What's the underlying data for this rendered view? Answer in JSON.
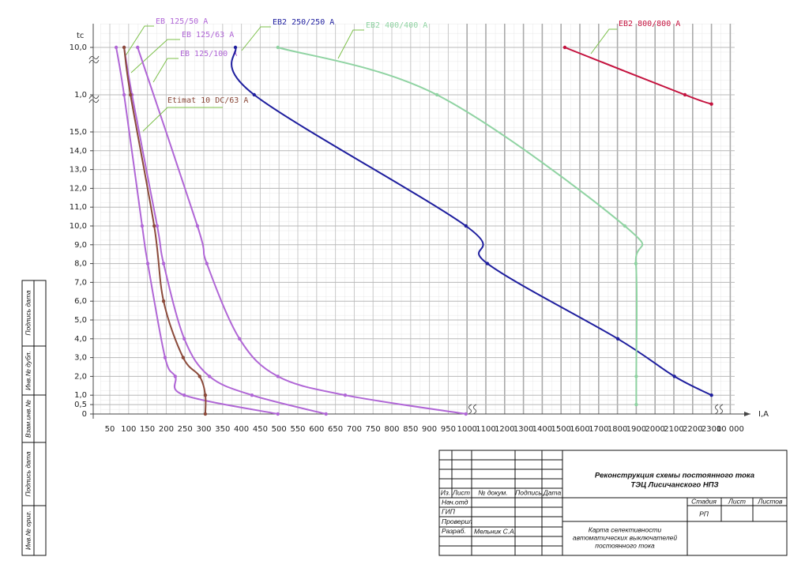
{
  "chart_data": {
    "type": "line",
    "y_axis_label": "tc",
    "x_axis_label": "I,A",
    "xlim": [
      50,
      10000
    ],
    "xticks": [
      50,
      100,
      150,
      200,
      250,
      300,
      350,
      400,
      450,
      500,
      550,
      600,
      650,
      700,
      750,
      800,
      850,
      900,
      950,
      1000,
      1100,
      1200,
      1300,
      1400,
      1500,
      1600,
      1700,
      1800,
      1900,
      2000,
      2100,
      2200,
      2300,
      {
        "value": 10000,
        "label": "10 000"
      }
    ],
    "ylim": [
      0,
      15
    ],
    "yticks": [
      0,
      {
        "value": 0.5,
        "label": "0,5"
      },
      {
        "value": 1,
        "label": "1,0"
      },
      {
        "value": 2,
        "label": "2,0"
      },
      {
        "value": 3,
        "label": "3,0"
      },
      {
        "value": 4,
        "label": "4,0"
      },
      {
        "value": 5,
        "label": "5,0"
      },
      {
        "value": 6,
        "label": "6,0"
      },
      {
        "value": 7,
        "label": "7,0"
      },
      {
        "value": 8,
        "label": "8,0"
      },
      {
        "value": 9,
        "label": "9,0"
      },
      {
        "value": 10,
        "label": "10,0"
      },
      {
        "value": 11,
        "label": "11,0"
      },
      {
        "value": 12,
        "label": "12,0"
      },
      {
        "value": 13,
        "label": "13,0"
      },
      {
        "value": 14,
        "label": "14,0"
      },
      {
        "value": 15,
        "label": "15,0"
      }
    ],
    "y2lim": [
      60,
      600
    ],
    "y2log": true,
    "y2ticks": [
      {
        "value": 60,
        "label": "1,0"
      },
      {
        "value": 600,
        "label": "10,0"
      }
    ],
    "grid": true,
    "series": [
      {
        "name": "EB 125/50 A",
        "color": "#b066d6",
        "x": [
          67,
          88,
          136,
          151,
          197,
          224,
          248,
          497
        ],
        "values": [
          600,
          60,
          10,
          8,
          3,
          2,
          1,
          0
        ]
      },
      {
        "name": "EB 125/63 A",
        "color": "#b066d6",
        "x": [
          88,
          109,
          176,
          193,
          248,
          315,
          428,
          625
        ],
        "values": [
          600,
          60,
          10,
          8,
          4,
          2,
          1,
          0
        ]
      },
      {
        "name": "EB 125/100 A",
        "color": "#b066d6",
        "x": [
          124,
          283,
          308,
          395,
          497,
          676,
          997
        ],
        "values": [
          600,
          10,
          8,
          4,
          2,
          1,
          0
        ]
      },
      {
        "name": "Etimat 10 DC/63 A",
        "color": "#8b4a3a",
        "x": [
          88,
          105,
          168,
          193,
          245,
          289,
          304,
          304
        ],
        "values": [
          600,
          60,
          10,
          6,
          3,
          2,
          1,
          0
        ]
      },
      {
        "name": "EB2 250/250 A",
        "color": "#1e1e9e",
        "x": [
          384,
          434,
          997,
          1108,
          1802,
          2103,
          2310
        ],
        "values": [
          600,
          60,
          10,
          8,
          4,
          2,
          1
        ]
      },
      {
        "name": "EB2 400/400 A",
        "color": "#8fd3a2",
        "x": [
          497,
          920,
          1839,
          1898,
          1900,
          1900
        ],
        "values": [
          600,
          60,
          10,
          8,
          2,
          0.5
        ]
      },
      {
        "name": "EB2 800/800 A",
        "color": "#c4123e",
        "x": [
          1520,
          2159,
          2300
        ],
        "values": [
          600,
          60,
          42.5
        ]
      }
    ]
  },
  "title_block": {
    "project": "Реконструкция схемы постоянного тока",
    "object": "ТЭЦ Лисичанского НПЗ",
    "columns": [
      "Из.",
      "Лист",
      "№ докум.",
      "Подпись",
      "Дата"
    ],
    "roles": [
      "Нач.отд",
      "ГИП",
      "Проверил",
      "Разраб."
    ],
    "developer": "Мельник С.А.",
    "stage_header": [
      "Стадия",
      "Лист",
      "Листов"
    ],
    "stage": "РП",
    "sheet_title": [
      "Карта селективности",
      "автоматических выключателей",
      "постоянного тока"
    ]
  },
  "side_stamp": [
    "Подпись дата",
    "Инв.№ дубл.",
    "Взам.инв.№",
    "Подпись дата",
    "Инв.№ ориг."
  ]
}
